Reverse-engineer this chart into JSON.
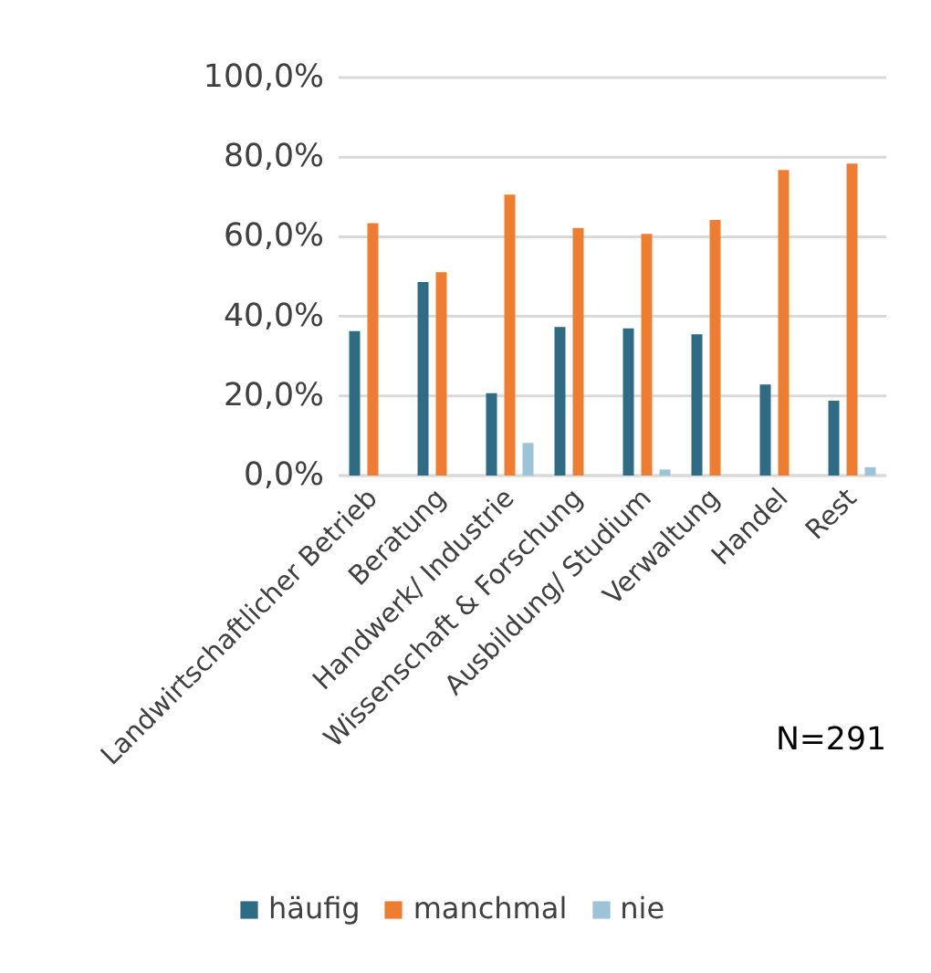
{
  "chart_data": {
    "type": "bar",
    "categories": [
      "Landwirtschaftlicher Betrieb",
      "Beratung",
      "Handwerk/ Industrie",
      "Wissenschaft & Forschung",
      "Ausbildung/ Studium",
      "Verwaltung",
      "Handel",
      "Rest"
    ],
    "series": [
      {
        "name": "häufig",
        "color": "#2e6b85",
        "values": [
          36.3,
          48.6,
          20.7,
          37.3,
          37.0,
          35.5,
          22.9,
          18.8
        ]
      },
      {
        "name": "manchmal",
        "color": "#ee7d31",
        "values": [
          63.4,
          51.1,
          70.6,
          62.2,
          60.7,
          64.2,
          76.8,
          78.4
        ]
      },
      {
        "name": "nie",
        "color": "#9dc3d8",
        "values": [
          0,
          0,
          8.2,
          0,
          1.5,
          0,
          0,
          2.1
        ]
      }
    ],
    "ylim": [
      0,
      100
    ],
    "yticks": [
      {
        "value": 0,
        "label": "0,0%"
      },
      {
        "value": 20,
        "label": "20,0%"
      },
      {
        "value": 40,
        "label": "40,0%"
      },
      {
        "value": 60,
        "label": "60,0%"
      },
      {
        "value": 80,
        "label": "80,0%"
      },
      {
        "value": 100,
        "label": "100,0%"
      }
    ],
    "grid": "y",
    "legend": "bottom",
    "annotations": [
      "N=291"
    ]
  }
}
